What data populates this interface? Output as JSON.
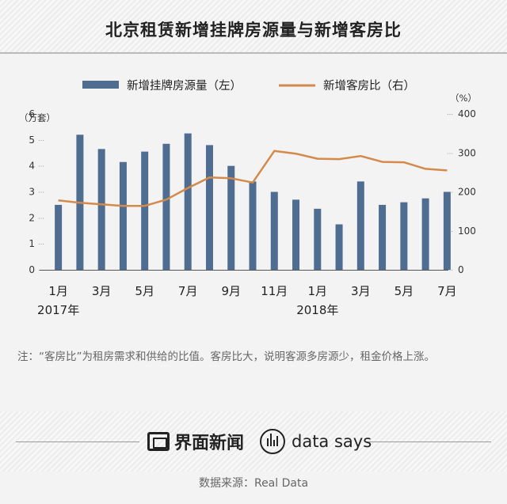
{
  "title": "北京租赁新增挂牌房源量与新增客房比",
  "note": "注：“客房比”为租房需求和供给的比值。客房比大，说明客源多房源少，租金价格上涨。",
  "source": "数据来源：Real Data",
  "brand": {
    "name": "界面新闻",
    "ds": "data says"
  },
  "colors": {
    "bar": "#4f6d91",
    "line": "#d38a4c"
  },
  "chart_data": {
    "type": "bar+line",
    "legend": {
      "placement": "top-center",
      "entries": [
        "新增挂牌房源量（左）",
        "新增客房比（右）"
      ]
    },
    "y_left": {
      "unit": "（万套）",
      "range": [
        0,
        6
      ],
      "ticks": [
        "0",
        "1",
        "2",
        "3",
        "4",
        "5",
        "6"
      ]
    },
    "y_right": {
      "unit": "（%）",
      "range": [
        0,
        400
      ],
      "ticks": [
        "0",
        "100",
        "200",
        "300",
        "400"
      ]
    },
    "x_tick_labels": [
      {
        "index": 0,
        "label": "1月"
      },
      {
        "index": 2,
        "label": "3月"
      },
      {
        "index": 4,
        "label": "5月"
      },
      {
        "index": 6,
        "label": "7月"
      },
      {
        "index": 8,
        "label": "9月"
      },
      {
        "index": 10,
        "label": "11月"
      },
      {
        "index": 12,
        "label": "1月"
      },
      {
        "index": 14,
        "label": "3月"
      },
      {
        "index": 16,
        "label": "5月"
      },
      {
        "index": 18,
        "label": "7月"
      }
    ],
    "year_labels": [
      {
        "index": 0,
        "label": "2017年"
      },
      {
        "index": 12,
        "label": "2018年"
      }
    ],
    "categories": [
      "2017-01",
      "2017-02",
      "2017-03",
      "2017-04",
      "2017-05",
      "2017-06",
      "2017-07",
      "2017-08",
      "2017-09",
      "2017-10",
      "2017-11",
      "2017-12",
      "2018-01",
      "2018-02",
      "2018-03",
      "2018-04",
      "2018-05",
      "2018-06",
      "2018-07"
    ],
    "series": [
      {
        "name": "新增挂牌房源量（左）",
        "type": "bar",
        "axis": "left",
        "values": [
          2.5,
          5.2,
          4.65,
          4.15,
          4.55,
          4.85,
          5.25,
          4.8,
          4.0,
          3.4,
          3.0,
          2.7,
          2.35,
          1.75,
          3.4,
          2.5,
          2.6,
          2.75,
          3.0
        ]
      },
      {
        "name": "新增客房比（右）",
        "type": "line",
        "axis": "right",
        "values": [
          178,
          172,
          168,
          164,
          164,
          180,
          210,
          237,
          235,
          224,
          305,
          298,
          285,
          284,
          292,
          277,
          276,
          259,
          255
        ]
      }
    ],
    "grid": false
  }
}
